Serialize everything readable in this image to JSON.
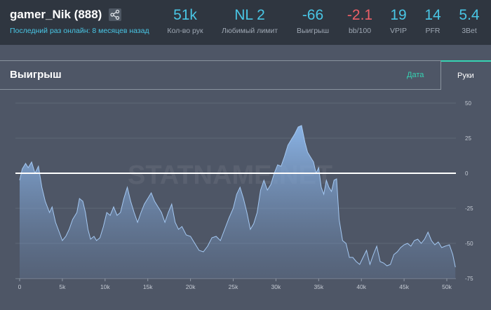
{
  "player": {
    "name": "gamer_Nik (888)",
    "last_online": "Последний раз онлайн: 8 месяцев назад",
    "share_icon": "share-icon"
  },
  "stats": [
    {
      "value": "51k",
      "label": "Кол-во рук",
      "color": "#49c6e5"
    },
    {
      "value": "NL 2",
      "label": "Любимый лимит",
      "color": "#49c6e5"
    },
    {
      "value": "-66",
      "label": "Выигрыш",
      "color": "#49c6e5"
    },
    {
      "value": "-2.1",
      "label": "bb/100",
      "color": "#ec5f67"
    },
    {
      "value": "19",
      "label": "VPIP",
      "color": "#49c6e5"
    },
    {
      "value": "14",
      "label": "PFR",
      "color": "#49c6e5"
    },
    {
      "value": "5.4",
      "label": "3Bet",
      "color": "#49c6e5"
    }
  ],
  "panel": {
    "title": "Выигрыш",
    "tabs": [
      {
        "label": "Дата",
        "active": false
      },
      {
        "label": "Руки",
        "active": true
      }
    ]
  },
  "watermark": "STATNAME.NET",
  "chart_data": {
    "type": "area",
    "x_ticks": [
      "0",
      "5k",
      "10k",
      "15k",
      "20k",
      "25k",
      "30k",
      "35k",
      "40k",
      "45k",
      "50k"
    ],
    "y_ticks": [
      50,
      25,
      0,
      -25,
      -50,
      -75
    ],
    "xlim": [
      0,
      51000
    ],
    "ylim": [
      -75,
      55
    ],
    "zero_line": true,
    "fill_color": "#88b4e8",
    "points": [
      [
        0,
        -5
      ],
      [
        300,
        3
      ],
      [
        700,
        7
      ],
      [
        1000,
        4
      ],
      [
        1400,
        8
      ],
      [
        1800,
        0
      ],
      [
        2200,
        5
      ],
      [
        2600,
        -10
      ],
      [
        3000,
        -20
      ],
      [
        3500,
        -28
      ],
      [
        3800,
        -24
      ],
      [
        4200,
        -35
      ],
      [
        4700,
        -43
      ],
      [
        5000,
        -48
      ],
      [
        5400,
        -45
      ],
      [
        5800,
        -40
      ],
      [
        6200,
        -33
      ],
      [
        6700,
        -28
      ],
      [
        7000,
        -18
      ],
      [
        7400,
        -20
      ],
      [
        7700,
        -28
      ],
      [
        8000,
        -40
      ],
      [
        8300,
        -47
      ],
      [
        8700,
        -45
      ],
      [
        9000,
        -48
      ],
      [
        9400,
        -46
      ],
      [
        9800,
        -38
      ],
      [
        10200,
        -28
      ],
      [
        10600,
        -30
      ],
      [
        11000,
        -24
      ],
      [
        11400,
        -30
      ],
      [
        11800,
        -28
      ],
      [
        12200,
        -18
      ],
      [
        12600,
        -10
      ],
      [
        13000,
        -20
      ],
      [
        13400,
        -28
      ],
      [
        13800,
        -35
      ],
      [
        14200,
        -28
      ],
      [
        14600,
        -22
      ],
      [
        15000,
        -18
      ],
      [
        15400,
        -14
      ],
      [
        15800,
        -20
      ],
      [
        16200,
        -24
      ],
      [
        16600,
        -28
      ],
      [
        17000,
        -35
      ],
      [
        17400,
        -28
      ],
      [
        17800,
        -22
      ],
      [
        18200,
        -35
      ],
      [
        18600,
        -40
      ],
      [
        19000,
        -38
      ],
      [
        19500,
        -44
      ],
      [
        20000,
        -45
      ],
      [
        20500,
        -50
      ],
      [
        21000,
        -55
      ],
      [
        21500,
        -56
      ],
      [
        22000,
        -52
      ],
      [
        22500,
        -46
      ],
      [
        23000,
        -45
      ],
      [
        23500,
        -48
      ],
      [
        24000,
        -40
      ],
      [
        24500,
        -32
      ],
      [
        25000,
        -25
      ],
      [
        25400,
        -15
      ],
      [
        25800,
        -10
      ],
      [
        26200,
        -18
      ],
      [
        26600,
        -28
      ],
      [
        27000,
        -40
      ],
      [
        27400,
        -36
      ],
      [
        27800,
        -28
      ],
      [
        28200,
        -12
      ],
      [
        28600,
        -5
      ],
      [
        29000,
        -12
      ],
      [
        29400,
        -8
      ],
      [
        29800,
        0
      ],
      [
        30200,
        6
      ],
      [
        30600,
        5
      ],
      [
        31000,
        12
      ],
      [
        31400,
        20
      ],
      [
        31800,
        24
      ],
      [
        32200,
        28
      ],
      [
        32600,
        33
      ],
      [
        33000,
        34
      ],
      [
        33400,
        22
      ],
      [
        33700,
        15
      ],
      [
        34000,
        12
      ],
      [
        34400,
        8
      ],
      [
        34700,
        0
      ],
      [
        35000,
        4
      ],
      [
        35300,
        -10
      ],
      [
        35600,
        -15
      ],
      [
        35900,
        -5
      ],
      [
        36200,
        -10
      ],
      [
        36500,
        -13
      ],
      [
        36800,
        -5
      ],
      [
        37100,
        -4
      ],
      [
        37400,
        -33
      ],
      [
        37800,
        -48
      ],
      [
        38200,
        -50
      ],
      [
        38600,
        -60
      ],
      [
        39000,
        -60
      ],
      [
        39400,
        -63
      ],
      [
        39800,
        -65
      ],
      [
        40200,
        -60
      ],
      [
        40600,
        -55
      ],
      [
        41000,
        -65
      ],
      [
        41400,
        -58
      ],
      [
        41800,
        -52
      ],
      [
        42200,
        -63
      ],
      [
        42600,
        -64
      ],
      [
        43000,
        -66
      ],
      [
        43400,
        -65
      ],
      [
        43800,
        -58
      ],
      [
        44200,
        -56
      ],
      [
        44600,
        -53
      ],
      [
        45000,
        -51
      ],
      [
        45400,
        -50
      ],
      [
        45800,
        -52
      ],
      [
        46200,
        -48
      ],
      [
        46600,
        -47
      ],
      [
        47000,
        -50
      ],
      [
        47400,
        -47
      ],
      [
        47800,
        -42
      ],
      [
        48200,
        -48
      ],
      [
        48600,
        -51
      ],
      [
        49000,
        -49
      ],
      [
        49400,
        -53
      ],
      [
        49800,
        -52
      ],
      [
        50300,
        -51
      ],
      [
        50700,
        -58
      ],
      [
        51000,
        -67
      ]
    ]
  }
}
